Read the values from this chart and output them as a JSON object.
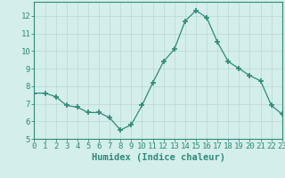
{
  "x": [
    0,
    1,
    2,
    3,
    4,
    5,
    6,
    7,
    8,
    9,
    10,
    11,
    12,
    13,
    14,
    15,
    16,
    17,
    18,
    19,
    20,
    21,
    22,
    23
  ],
  "y": [
    7.6,
    7.6,
    7.4,
    6.9,
    6.8,
    6.5,
    6.5,
    6.2,
    5.5,
    5.8,
    6.9,
    8.2,
    9.4,
    10.1,
    11.7,
    12.3,
    11.9,
    10.5,
    9.4,
    9.0,
    8.6,
    8.3,
    6.9,
    6.4
  ],
  "line_color": "#2e8b78",
  "marker": "+",
  "marker_size": 4,
  "background_color": "#d4eeec",
  "grid_color": "#b8d8d6",
  "xlabel": "Humidex (Indice chaleur)",
  "ylim": [
    5,
    12.8
  ],
  "xlim": [
    0,
    23
  ],
  "yticks": [
    5,
    6,
    7,
    8,
    9,
    10,
    11,
    12
  ],
  "xticks": [
    0,
    1,
    2,
    3,
    4,
    5,
    6,
    7,
    8,
    9,
    10,
    11,
    12,
    13,
    14,
    15,
    16,
    17,
    18,
    19,
    20,
    21,
    22,
    23
  ],
  "tick_fontsize": 6.5,
  "xlabel_fontsize": 7.5,
  "spine_color": "#2e8b78",
  "tick_color": "#2e8b78"
}
